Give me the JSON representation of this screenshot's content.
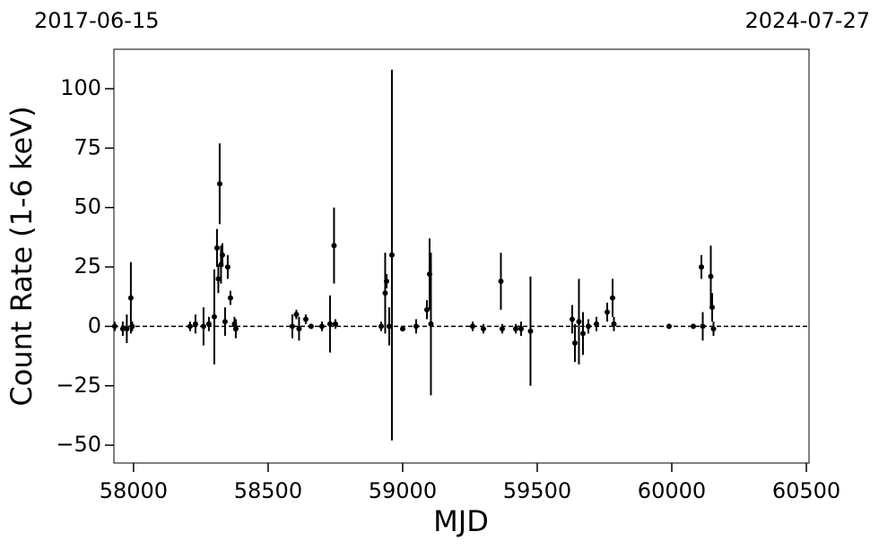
{
  "chart_data": {
    "type": "errorbar-scatter",
    "top_left_label": "2017-06-15",
    "top_right_label": "2024-07-27",
    "x_label": "MJD",
    "y_label": "Count Rate (1-6 keV)",
    "xlim": [
      57927,
      60510
    ],
    "ylim": [
      -57.5,
      116.6
    ],
    "xticks": [
      58000,
      58500,
      59000,
      59500,
      60000,
      60500
    ],
    "yticks": [
      {
        "value": -50,
        "label": "−50"
      },
      {
        "value": -25,
        "label": "−25"
      },
      0,
      25,
      50,
      75,
      100
    ],
    "hline": 0,
    "color": "#000000",
    "series": [
      {
        "x": [
          57930,
          57960,
          57975,
          57990,
          57995,
          58210,
          58230,
          58260,
          58280,
          58300,
          58310,
          58315,
          58320,
          58325,
          58330,
          58340,
          58350,
          58360,
          58375,
          58380,
          58590,
          58605,
          58615,
          58640,
          58660,
          58700,
          58730,
          58745,
          58750,
          58920,
          58935,
          58940,
          58950,
          58960,
          59000,
          59050,
          59090,
          59100,
          59105,
          59260,
          59300,
          59365,
          59370,
          59420,
          59440,
          59475,
          59630,
          59640,
          59655,
          59670,
          59690,
          59720,
          59760,
          59780,
          59785,
          59990,
          60080,
          60110,
          60115,
          60145,
          60150,
          60155
        ],
        "values": [
          0,
          -1,
          -1,
          12,
          0,
          0,
          1,
          0,
          1,
          4,
          33,
          20,
          60,
          26,
          30,
          2,
          25,
          12,
          1,
          -1,
          0,
          5,
          -1,
          3,
          0,
          0,
          1,
          34,
          1,
          0,
          14,
          19,
          0,
          30,
          -1,
          0,
          7,
          22,
          1,
          0,
          -1,
          19,
          -1,
          -1,
          -1,
          -2,
          3,
          -7,
          2,
          -3,
          0,
          1,
          6,
          12,
          1,
          0,
          0,
          25,
          0,
          21,
          8,
          -1
        ],
        "errors": [
          2,
          3,
          6,
          15,
          2,
          2,
          4,
          8,
          3,
          20,
          8,
          6,
          17,
          8,
          5,
          6,
          5,
          3,
          3,
          4,
          5,
          2,
          5,
          2,
          1,
          2,
          12,
          16,
          2,
          2,
          17,
          3,
          8,
          78,
          1,
          3,
          4,
          15,
          30,
          2,
          2,
          12,
          2,
          2,
          3,
          23,
          6,
          8,
          18,
          9,
          3,
          3,
          4,
          8,
          3,
          1,
          1,
          5,
          6,
          13,
          6,
          3
        ]
      }
    ]
  }
}
